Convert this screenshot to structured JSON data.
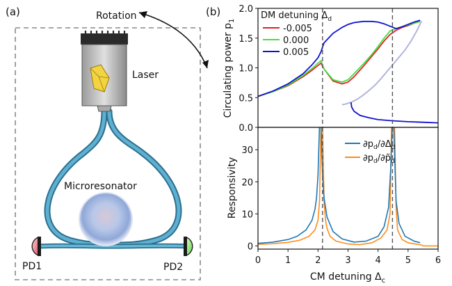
{
  "panel_a": {
    "label": "(a)",
    "rotation_label": "Rotation",
    "laser_label": "Laser",
    "microresonator_label": "Microresonator",
    "pd1_label": "PD1",
    "pd2_label": "PD2",
    "colors": {
      "fiber": "#3c8db0",
      "pd1": "#e8707c",
      "pd2": "#84e06a",
      "laser_body": "#c8c8c8",
      "resonator": "#b8c8e8"
    }
  },
  "panel_b": {
    "label": "(b)"
  },
  "chart_data": [
    {
      "type": "line",
      "title": "",
      "xlabel": "",
      "ylabel": "Circulating power p",
      "ylabel_sub": "1",
      "xlim": [
        0,
        6
      ],
      "ylim": [
        0,
        2
      ],
      "yticks": [
        "0.0",
        "0.5",
        "1.0",
        "1.5",
        "2.0"
      ],
      "legend_title": "DM detuning Δ",
      "legend_title_sub": "d",
      "legend_position": "top-left",
      "series": [
        {
          "name": "-0.005",
          "color": "#e02020",
          "x": [
            0,
            0.5,
            1.0,
            1.5,
            1.8,
            2.0,
            2.1,
            2.2,
            2.5,
            2.8,
            3.0,
            3.2,
            3.5,
            3.8,
            4.0,
            4.2,
            4.4,
            4.6,
            4.8,
            5.0,
            5.2,
            5.4
          ],
          "y": [
            0.52,
            0.6,
            0.7,
            0.85,
            0.96,
            1.04,
            1.08,
            0.98,
            0.78,
            0.73,
            0.76,
            0.85,
            1.02,
            1.2,
            1.32,
            1.45,
            1.56,
            1.63,
            1.68,
            1.71,
            1.75,
            1.78
          ]
        },
        {
          "name": "0.000",
          "color": "#40e040",
          "x": [
            0,
            0.5,
            1.0,
            1.5,
            1.8,
            2.0,
            2.1,
            2.2,
            2.5,
            2.8,
            3.0,
            3.2,
            3.5,
            3.8,
            4.0,
            4.2,
            4.4,
            4.6,
            4.8,
            5.0,
            5.2,
            5.4
          ],
          "y": [
            0.52,
            0.6,
            0.71,
            0.87,
            0.99,
            1.08,
            1.12,
            0.98,
            0.8,
            0.76,
            0.8,
            0.9,
            1.06,
            1.23,
            1.36,
            1.5,
            1.62,
            1.66,
            1.69,
            1.72,
            1.75,
            1.78
          ]
        },
        {
          "name": "0.005",
          "color": "#1010d0",
          "x": [
            0,
            0.5,
            1.0,
            1.5,
            1.8,
            2.0,
            2.1,
            2.2,
            2.5,
            2.8,
            3.0,
            3.2,
            3.5,
            3.8,
            4.0,
            4.2,
            4.4,
            4.6,
            4.8,
            5.0,
            5.2,
            5.4
          ],
          "y": [
            0.52,
            0.61,
            0.73,
            0.9,
            1.05,
            1.17,
            1.27,
            1.42,
            1.58,
            1.68,
            1.73,
            1.76,
            1.78,
            1.78,
            1.77,
            1.74,
            1.7,
            1.66,
            1.69,
            1.73,
            1.77,
            1.8
          ]
        }
      ],
      "grey_branch": {
        "color": "#b0b4dc",
        "x": [
          5.45,
          5.3,
          5.1,
          4.9,
          4.7,
          4.5,
          4.3,
          4.1,
          3.9,
          3.7,
          3.5,
          3.3,
          3.1,
          2.9,
          2.8
        ],
        "y": [
          1.79,
          1.63,
          1.45,
          1.3,
          1.18,
          1.06,
          0.94,
          0.82,
          0.71,
          0.62,
          0.54,
          0.47,
          0.42,
          0.39,
          0.38
        ]
      },
      "lower_branch": {
        "color": "#1010d0",
        "x": [
          3.1,
          3.12,
          3.2,
          3.4,
          3.7,
          4.0,
          4.5,
          5.0,
          5.5,
          6.0
        ],
        "y": [
          0.42,
          0.34,
          0.27,
          0.2,
          0.16,
          0.13,
          0.11,
          0.095,
          0.085,
          0.075
        ]
      },
      "vlines": [
        2.15,
        4.48
      ]
    },
    {
      "type": "line",
      "title": "",
      "xlabel": "CM detuning Δ",
      "xlabel_sub": "c",
      "ylabel": "Responsivity",
      "xlim": [
        0,
        6
      ],
      "ylim": [
        -1,
        37
      ],
      "xticks": [
        "0",
        "1",
        "2",
        "3",
        "4",
        "5",
        "6"
      ],
      "yticks": [
        "0",
        "10",
        "20",
        "30"
      ],
      "legend_position": "top-right",
      "series": [
        {
          "name": "∂p_d/∂Δ_d",
          "label_a": "∂p",
          "label_a_sub": "d",
          "label_b": "/∂Δ",
          "label_b_sub": "d",
          "color": "#1f77b4",
          "x": [
            0,
            0.5,
            1.0,
            1.3,
            1.6,
            1.8,
            1.9,
            1.95,
            2.0,
            2.05,
            2.1,
            2.15,
            2.2,
            2.3,
            2.5,
            2.8,
            3.2,
            3.6,
            4.0,
            4.2,
            4.35,
            4.42,
            4.48,
            4.52,
            4.6,
            4.7,
            4.9,
            5.2,
            5.4
          ],
          "y": [
            0.8,
            1.2,
            2.0,
            3.0,
            5.0,
            8.0,
            11.5,
            15.0,
            22.0,
            38.0,
            38.0,
            22.0,
            15.0,
            9.0,
            4.5,
            2.2,
            1.2,
            1.5,
            3.0,
            6.0,
            12.0,
            24.0,
            38.0,
            38.0,
            14.0,
            7.0,
            3.0,
            1.5,
            1.0
          ]
        },
        {
          "name": "∂p_d/∂p̃_d",
          "label_a": "∂p",
          "label_a_sub": "d",
          "label_b": "/∂p̃",
          "label_b_sub": "d",
          "color": "#ff8c1a",
          "x": [
            0,
            0.5,
            1.0,
            1.4,
            1.7,
            1.9,
            2.0,
            2.05,
            2.1,
            2.15,
            2.2,
            2.25,
            2.3,
            2.4,
            2.6,
            3.0,
            3.4,
            3.8,
            4.1,
            4.3,
            4.4,
            4.45,
            4.5,
            4.55,
            4.6,
            4.65,
            4.8,
            5.0,
            5.3,
            5.45,
            5.5,
            6.0
          ],
          "y": [
            0.5,
            0.7,
            1.1,
            1.8,
            3.0,
            5.0,
            8.0,
            14.0,
            38.0,
            38.0,
            14.0,
            8.0,
            5.5,
            3.0,
            1.5,
            0.6,
            0.4,
            1.0,
            2.5,
            5.0,
            10.0,
            38.0,
            38.0,
            38.0,
            12.0,
            5.0,
            2.0,
            1.0,
            0.5,
            0.3,
            0.0,
            0.0
          ]
        }
      ],
      "vlines": [
        2.15,
        4.48
      ]
    }
  ]
}
